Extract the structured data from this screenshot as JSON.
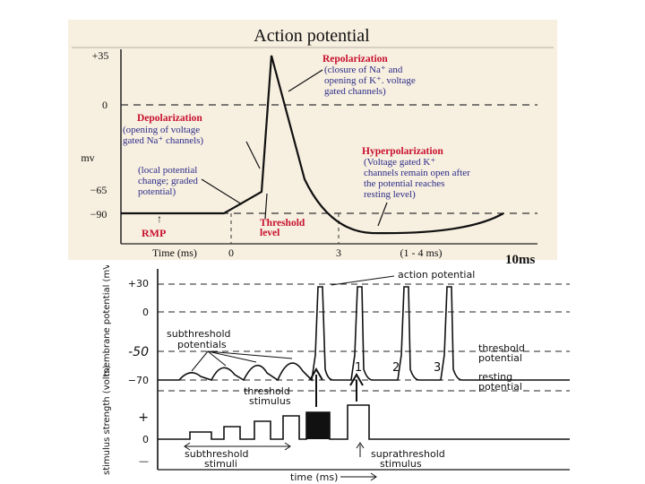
{
  "top": {
    "title": "Action potential",
    "y_labels": {
      "p35": "+35",
      "zero": "0",
      "unit": "mv",
      "m65": "−65",
      "m90": "−90"
    },
    "repolarization": {
      "heading": "Repolarization",
      "lines": [
        "(closure of Na⁺ and",
        "opening of K⁺. voltage",
        "gated channels)"
      ]
    },
    "depolarization": {
      "heading": "Depolarization",
      "lines": [
        "(opening of voltage",
        "gated Na⁺ channels)"
      ]
    },
    "local": {
      "lines": [
        "(local potential",
        "change; graded",
        "potential)"
      ]
    },
    "hyperpolarization": {
      "heading": "Hyperpolarization",
      "lines": [
        "(Voltage gated K⁺",
        "channels remain open after",
        "the potential reaches",
        "resting level)"
      ]
    },
    "threshold": [
      "Threshold",
      "level"
    ],
    "rmp": "RMP",
    "x_axis": {
      "time_label": "Time (ms)",
      "tick0": "0",
      "tick3": "3",
      "range": "(1 - 4 ms)"
    },
    "corner_note": "10ms"
  },
  "bottom": {
    "y_top": {
      "p30": "+30",
      "zero": "0",
      "m50": "-50",
      "m70": "−70",
      "axis_title": "membrane potential (mV)"
    },
    "y_bottom": {
      "plus": "+",
      "zero": "0",
      "minus": "—",
      "axis_title": "stimulus strength (volts)"
    },
    "labels": {
      "action_potential": "action potential",
      "subthreshold_potentials": [
        "subthreshold",
        "potentials"
      ],
      "threshold_potential": [
        "threshold",
        "potential"
      ],
      "resting_potential": [
        "resting",
        "potential"
      ],
      "threshold_stimulus": [
        "threshold",
        "stimulus"
      ],
      "subthreshold_stimuli": [
        "subthreshold",
        "stimuli"
      ],
      "suprathreshold_stimulus": [
        "suprathreshold",
        "stimulus"
      ],
      "time": "time (ms)",
      "n1": "1",
      "n2": "2",
      "n3": "3"
    }
  }
}
